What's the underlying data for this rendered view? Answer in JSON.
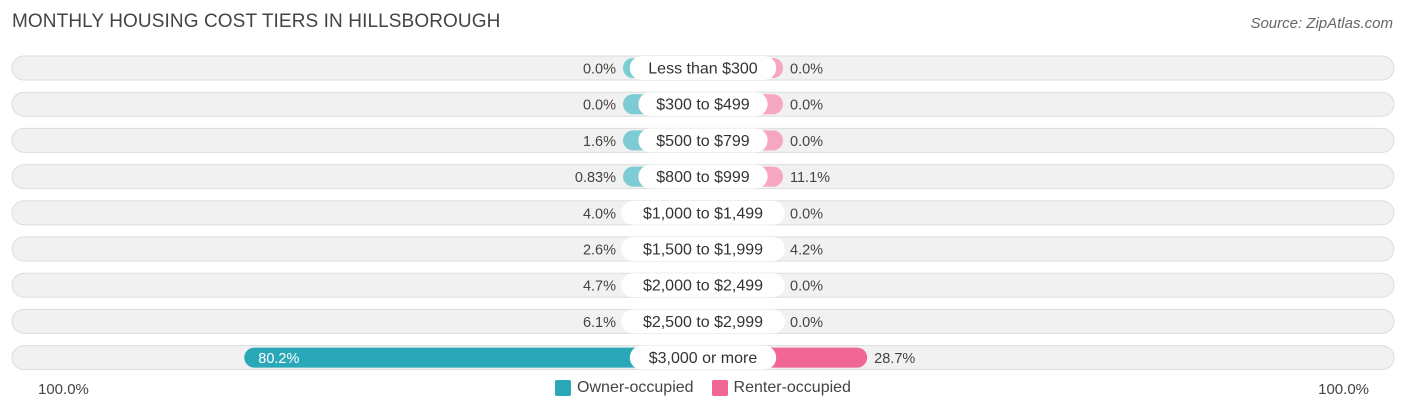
{
  "header": {
    "title": "MONTHLY HOUSING COST TIERS IN HILLSBOROUGH",
    "source": "Source: ZipAtlas.com"
  },
  "colors": {
    "owner": "#7dcbd3",
    "owner_strong": "#2ba8b8",
    "renter": "#f7a6c0",
    "renter_strong": "#f06694",
    "track": "#f1f1f1",
    "track_border": "#dddddd"
  },
  "chart_data": {
    "type": "bar",
    "orientation": "diverging-horizontal",
    "categories": [
      "Less than $300",
      "$300 to $499",
      "$500 to $799",
      "$800 to $999",
      "$1,000 to $1,499",
      "$1,500 to $1,999",
      "$2,000 to $2,499",
      "$2,500 to $2,999",
      "$3,000 or more"
    ],
    "series": [
      {
        "name": "Owner-occupied",
        "values": [
          0.0,
          0.0,
          1.6,
          0.83,
          4.0,
          2.6,
          4.7,
          6.1,
          80.2
        ],
        "labels": [
          "0.0%",
          "0.0%",
          "1.6%",
          "0.83%",
          "4.0%",
          "2.6%",
          "4.7%",
          "6.1%",
          "80.2%"
        ]
      },
      {
        "name": "Renter-occupied",
        "values": [
          0.0,
          0.0,
          0.0,
          11.1,
          0.0,
          4.2,
          0.0,
          0.0,
          28.7
        ],
        "labels": [
          "0.0%",
          "0.0%",
          "0.0%",
          "11.1%",
          "0.0%",
          "4.2%",
          "0.0%",
          "0.0%",
          "28.7%"
        ]
      }
    ],
    "xlim": [
      -100,
      100
    ],
    "axis_left_label": "100.0%",
    "axis_right_label": "100.0%",
    "legend_position": "bottom-center"
  }
}
